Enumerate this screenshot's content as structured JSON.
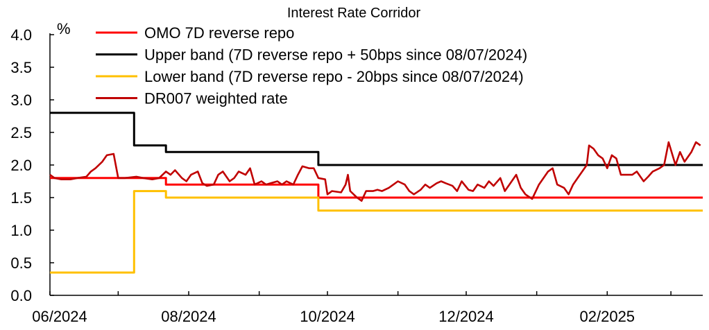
{
  "chart_data": {
    "type": "line",
    "title": "Interest Rate Corridor",
    "y_unit": "%",
    "xlabel": "",
    "ylabel": "",
    "ylim": [
      0,
      4
    ],
    "y_ticks": [
      "0.0",
      "0.5",
      "1.0",
      "1.5",
      "2.0",
      "2.5",
      "3.0",
      "3.5",
      "4.0"
    ],
    "x_range": [
      "2024-06-01",
      "2025-03-15"
    ],
    "x_ticks": [
      {
        "date": "2024-06-01",
        "label": "06/2024"
      },
      {
        "date": "2024-08-01",
        "label": "08/2024"
      },
      {
        "date": "2024-10-01",
        "label": "10/2024"
      },
      {
        "date": "2024-12-01",
        "label": "12/2024"
      },
      {
        "date": "2025-02-01",
        "label": "02/2025"
      }
    ],
    "grid": false,
    "legend_position": "top",
    "series": [
      {
        "name": "OMO 7D reverse repo",
        "color": "#ff0000",
        "step": true,
        "points": [
          [
            "2024-06-01",
            1.8
          ],
          [
            "2024-07-22",
            1.7
          ],
          [
            "2024-09-27",
            1.5
          ],
          [
            "2025-03-15",
            1.5
          ]
        ]
      },
      {
        "name": "Upper band (7D reverse repo + 50bps since 08/07/2024)",
        "color": "#000000",
        "step": true,
        "points": [
          [
            "2024-06-01",
            2.8
          ],
          [
            "2024-07-08",
            2.3
          ],
          [
            "2024-07-22",
            2.2
          ],
          [
            "2024-09-27",
            2.0
          ],
          [
            "2025-03-15",
            2.0
          ]
        ]
      },
      {
        "name": "Lower band (7D reverse repo - 20bps since 08/07/2024)",
        "color": "#ffc000",
        "step": true,
        "points": [
          [
            "2024-06-01",
            0.35
          ],
          [
            "2024-07-08",
            1.6
          ],
          [
            "2024-07-22",
            1.5
          ],
          [
            "2024-09-27",
            1.3
          ],
          [
            "2025-03-15",
            1.3
          ]
        ]
      },
      {
        "name": "DR007 weighted rate",
        "color": "#c00000",
        "step": false,
        "points": [
          [
            "2024-06-01",
            1.85
          ],
          [
            "2024-06-03",
            1.8
          ],
          [
            "2024-06-06",
            1.78
          ],
          [
            "2024-06-10",
            1.78
          ],
          [
            "2024-06-13",
            1.8
          ],
          [
            "2024-06-17",
            1.82
          ],
          [
            "2024-06-19",
            1.9
          ],
          [
            "2024-06-21",
            1.95
          ],
          [
            "2024-06-24",
            2.05
          ],
          [
            "2024-06-26",
            2.15
          ],
          [
            "2024-06-29",
            2.17
          ],
          [
            "2024-07-01",
            1.8
          ],
          [
            "2024-07-04",
            1.8
          ],
          [
            "2024-07-09",
            1.82
          ],
          [
            "2024-07-12",
            1.8
          ],
          [
            "2024-07-16",
            1.78
          ],
          [
            "2024-07-19",
            1.8
          ],
          [
            "2024-07-22",
            1.9
          ],
          [
            "2024-07-24",
            1.85
          ],
          [
            "2024-07-26",
            1.92
          ],
          [
            "2024-07-29",
            1.8
          ],
          [
            "2024-07-31",
            1.75
          ],
          [
            "2024-08-02",
            1.85
          ],
          [
            "2024-08-05",
            1.9
          ],
          [
            "2024-08-07",
            1.72
          ],
          [
            "2024-08-09",
            1.68
          ],
          [
            "2024-08-12",
            1.7
          ],
          [
            "2024-08-14",
            1.85
          ],
          [
            "2024-08-16",
            1.9
          ],
          [
            "2024-08-19",
            1.75
          ],
          [
            "2024-08-21",
            1.8
          ],
          [
            "2024-08-23",
            1.9
          ],
          [
            "2024-08-26",
            1.85
          ],
          [
            "2024-08-28",
            1.95
          ],
          [
            "2024-08-30",
            1.7
          ],
          [
            "2024-09-02",
            1.75
          ],
          [
            "2024-09-04",
            1.7
          ],
          [
            "2024-09-06",
            1.72
          ],
          [
            "2024-09-09",
            1.75
          ],
          [
            "2024-09-11",
            1.7
          ],
          [
            "2024-09-13",
            1.75
          ],
          [
            "2024-09-16",
            1.7
          ],
          [
            "2024-09-18",
            1.85
          ],
          [
            "2024-09-20",
            1.98
          ],
          [
            "2024-09-23",
            1.95
          ],
          [
            "2024-09-25",
            1.95
          ],
          [
            "2024-09-27",
            1.8
          ],
          [
            "2024-09-30",
            1.78
          ],
          [
            "2024-10-01",
            1.55
          ],
          [
            "2024-10-03",
            1.6
          ],
          [
            "2024-10-07",
            1.58
          ],
          [
            "2024-10-09",
            1.7
          ],
          [
            "2024-10-10",
            1.85
          ],
          [
            "2024-10-11",
            1.6
          ],
          [
            "2024-10-14",
            1.5
          ],
          [
            "2024-10-16",
            1.45
          ],
          [
            "2024-10-18",
            1.6
          ],
          [
            "2024-10-21",
            1.6
          ],
          [
            "2024-10-23",
            1.62
          ],
          [
            "2024-10-25",
            1.6
          ],
          [
            "2024-10-28",
            1.65
          ],
          [
            "2024-10-30",
            1.7
          ],
          [
            "2024-11-01",
            1.75
          ],
          [
            "2024-11-04",
            1.7
          ],
          [
            "2024-11-06",
            1.6
          ],
          [
            "2024-11-08",
            1.55
          ],
          [
            "2024-11-11",
            1.62
          ],
          [
            "2024-11-13",
            1.7
          ],
          [
            "2024-11-15",
            1.65
          ],
          [
            "2024-11-18",
            1.72
          ],
          [
            "2024-11-20",
            1.75
          ],
          [
            "2024-11-22",
            1.72
          ],
          [
            "2024-11-25",
            1.68
          ],
          [
            "2024-11-27",
            1.6
          ],
          [
            "2024-11-29",
            1.75
          ],
          [
            "2024-12-02",
            1.62
          ],
          [
            "2024-12-04",
            1.6
          ],
          [
            "2024-12-06",
            1.7
          ],
          [
            "2024-12-09",
            1.65
          ],
          [
            "2024-12-11",
            1.75
          ],
          [
            "2024-12-13",
            1.68
          ],
          [
            "2024-12-16",
            1.8
          ],
          [
            "2024-12-18",
            1.6
          ],
          [
            "2024-12-20",
            1.7
          ],
          [
            "2024-12-23",
            1.85
          ],
          [
            "2024-12-25",
            1.65
          ],
          [
            "2024-12-27",
            1.55
          ],
          [
            "2024-12-30",
            1.48
          ],
          [
            "2025-01-02",
            1.7
          ],
          [
            "2025-01-06",
            1.9
          ],
          [
            "2025-01-08",
            1.95
          ],
          [
            "2025-01-10",
            1.7
          ],
          [
            "2025-01-13",
            1.65
          ],
          [
            "2025-01-15",
            1.55
          ],
          [
            "2025-01-17",
            1.7
          ],
          [
            "2025-01-20",
            1.85
          ],
          [
            "2025-01-23",
            2.0
          ],
          [
            "2025-01-24",
            2.3
          ],
          [
            "2025-01-26",
            2.25
          ],
          [
            "2025-01-28",
            2.15
          ],
          [
            "2025-01-30",
            2.1
          ],
          [
            "2025-02-01",
            1.95
          ],
          [
            "2025-02-03",
            2.15
          ],
          [
            "2025-02-05",
            2.1
          ],
          [
            "2025-02-07",
            1.85
          ],
          [
            "2025-02-10",
            1.85
          ],
          [
            "2025-02-12",
            1.85
          ],
          [
            "2025-02-14",
            1.9
          ],
          [
            "2025-02-17",
            1.75
          ],
          [
            "2025-02-19",
            1.82
          ],
          [
            "2025-02-21",
            1.9
          ],
          [
            "2025-02-24",
            1.95
          ],
          [
            "2025-02-26",
            2.0
          ],
          [
            "2025-02-28",
            2.35
          ],
          [
            "2025-03-03",
            2.0
          ],
          [
            "2025-03-05",
            2.2
          ],
          [
            "2025-03-07",
            2.05
          ],
          [
            "2025-03-10",
            2.2
          ],
          [
            "2025-03-12",
            2.35
          ],
          [
            "2025-03-14",
            2.3
          ]
        ]
      }
    ]
  }
}
